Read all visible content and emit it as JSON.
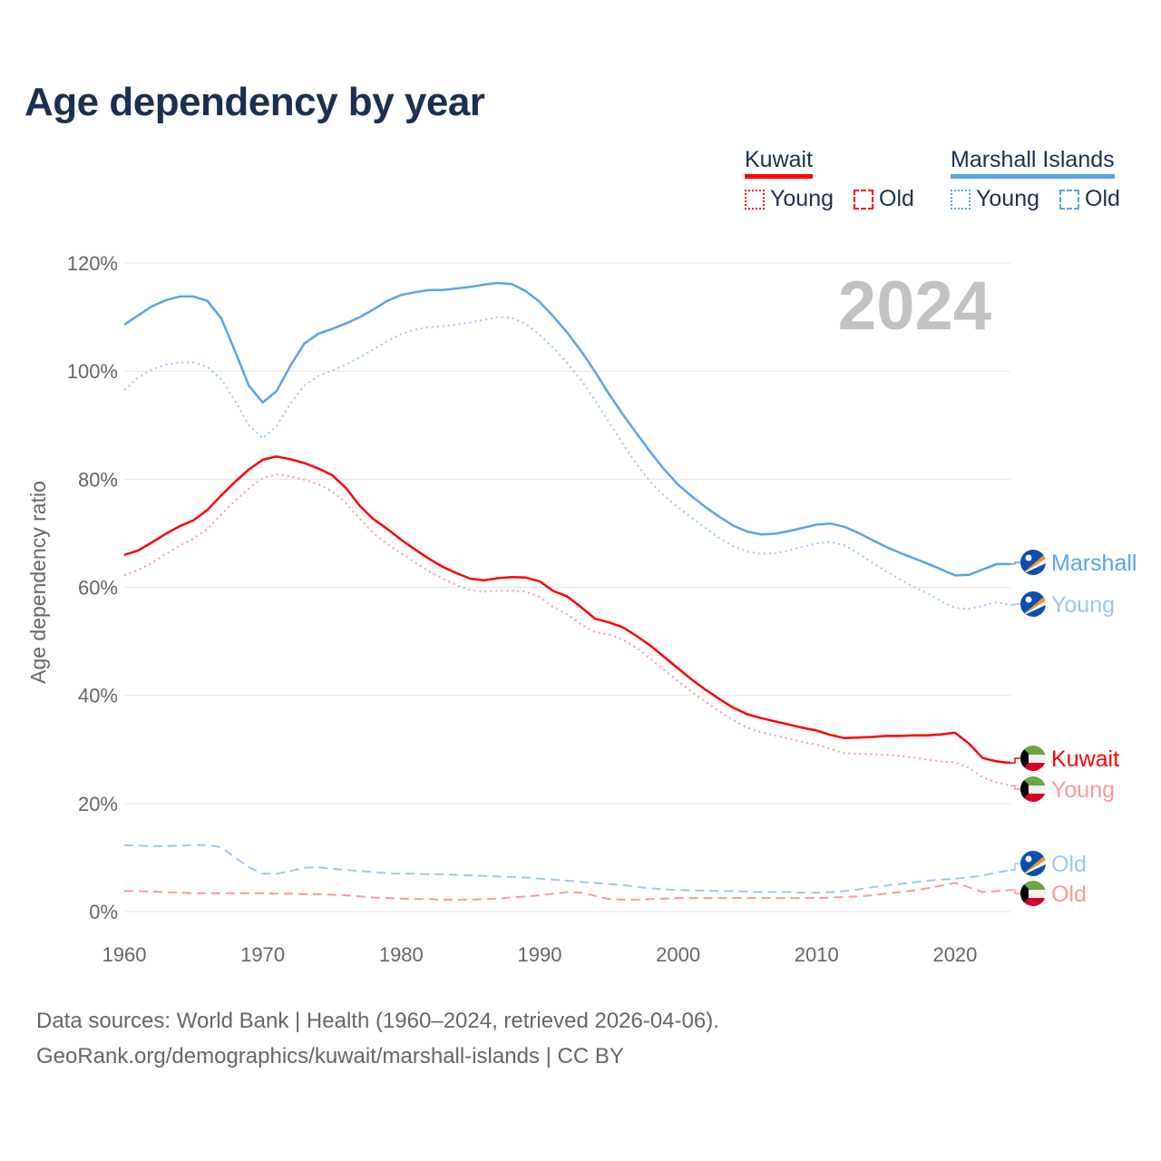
{
  "title": "Age dependency by year",
  "legend": {
    "groups": [
      {
        "name": "Kuwait",
        "color": "#ff0000",
        "items": [
          "Young",
          "Old"
        ]
      },
      {
        "name": "Marshall Islands",
        "color": "#5ba4ea",
        "items": [
          "Young",
          "Old"
        ]
      }
    ]
  },
  "year_watermark": "2024",
  "footer": {
    "line1": "Data sources: World Bank | Health (1960–2024, retrieved 2026-04-06).",
    "line2": "GeoRank.org/demographics/kuwait/marshall-islands | CC BY"
  },
  "end_labels": [
    "Marshall",
    "Young",
    "Kuwait",
    "Young",
    "Old",
    "Old"
  ],
  "chart_data": {
    "type": "line",
    "title": "Age dependency by year",
    "xlabel": "",
    "ylabel": "Age dependency ratio",
    "xlim": [
      1960,
      2024
    ],
    "ylim": [
      0,
      120
    ],
    "x_ticks": [
      "1960",
      "1970",
      "1980",
      "1990",
      "2000",
      "2010",
      "2020"
    ],
    "y_ticks": [
      "0%",
      "20%",
      "40%",
      "60%",
      "80%",
      "100%",
      "120%"
    ],
    "grid": true,
    "start_year": 1960,
    "series": [
      {
        "name": "Marshall Islands",
        "color": "#5ba4ea",
        "style": "solid",
        "values": [
          108.6,
          110.3,
          112,
          113.1,
          113.8,
          113.8,
          113,
          109.8,
          103.7,
          97.3,
          94.2,
          96.3,
          101,
          105.1,
          106.9,
          107.8,
          108.8,
          110,
          111.4,
          113,
          114.1,
          114.6,
          115,
          115,
          115.3,
          115.6,
          116,
          116.3,
          116.1,
          114.8,
          112.8,
          110.1,
          107.1,
          103.7,
          99.9,
          95.8,
          92,
          88.5,
          85,
          81.8,
          79,
          76.8,
          74.8,
          73,
          71.4,
          70.3,
          69.8,
          69.9,
          70.4,
          71,
          71.6,
          71.8,
          71.2,
          70.1,
          68.8,
          67.5,
          66.4,
          65.4,
          64.4,
          63.3,
          62.2,
          62.3,
          63.3,
          64.3,
          64.3
        ]
      },
      {
        "name": "Marshall Islands Young",
        "color": "#9cc8f2",
        "style": "dotted",
        "values": [
          96.5,
          98.8,
          100.3,
          101.2,
          101.6,
          101.6,
          100.8,
          98.5,
          94.5,
          90,
          87.6,
          89.8,
          94,
          97.3,
          99.1,
          100.1,
          101.2,
          102.5,
          104,
          105.6,
          106.9,
          107.7,
          108.1,
          108.3,
          108.6,
          109,
          109.5,
          110,
          109.9,
          108.7,
          106.7,
          104.3,
          101.5,
          98.3,
          94.6,
          90.6,
          86.6,
          82.8,
          79.5,
          76.9,
          74.8,
          72.8,
          70.9,
          69.1,
          67.6,
          66.6,
          66.2,
          66.3,
          66.8,
          67.5,
          68.1,
          68.4,
          67.8,
          66.3,
          64.6,
          63,
          61.5,
          60.1,
          58.9,
          57.4,
          56.2,
          56,
          56.6,
          57.2,
          56.8
        ]
      },
      {
        "name": "Kuwait",
        "color": "#ff0000",
        "style": "solid",
        "values": [
          66,
          66.8,
          68.3,
          69.9,
          71.3,
          72.4,
          74.3,
          77,
          79.5,
          81.8,
          83.6,
          84.2,
          83.7,
          83,
          82,
          80.8,
          78.4,
          75.1,
          72.6,
          70.8,
          68.8,
          67,
          65.3,
          63.8,
          62.6,
          61.6,
          61.3,
          61.7,
          61.9,
          61.8,
          61.1,
          59.3,
          58.3,
          56.3,
          54.2,
          53.5,
          52.6,
          51,
          49.2,
          47.1,
          45,
          42.9,
          41,
          39.3,
          37.7,
          36.5,
          35.8,
          35.2,
          34.6,
          34,
          33.5,
          32.7,
          32.1,
          32.2,
          32.3,
          32.5,
          32.5,
          32.6,
          32.6,
          32.8,
          33.1,
          31.1,
          28.4,
          27.8,
          27.5
        ]
      },
      {
        "name": "Kuwait Young",
        "color": "#ff9999",
        "style": "dotted",
        "values": [
          62.2,
          63.2,
          64.5,
          66.2,
          67.7,
          69,
          70.8,
          73.5,
          76,
          78.3,
          80.2,
          80.9,
          80.5,
          79.9,
          79.1,
          77.8,
          75.6,
          72.7,
          70,
          68,
          66.3,
          64.6,
          63,
          61.6,
          60.4,
          59.5,
          59.2,
          59.4,
          59.4,
          59.2,
          58.2,
          56.3,
          55,
          53.1,
          51.7,
          51.3,
          50.3,
          48.8,
          46.8,
          44.7,
          42.6,
          40.6,
          38.8,
          37,
          35.4,
          34,
          33.2,
          32.6,
          32,
          31.4,
          30.9,
          30.1,
          29.3,
          29.2,
          29.1,
          29,
          28.8,
          28.5,
          28.1,
          27.8,
          27.6,
          26.6,
          24.8,
          23.9,
          23.3
        ]
      },
      {
        "name": "Marshall Islands Old",
        "color": "#9cc8f2",
        "style": "dashed",
        "values": [
          12.3,
          12.2,
          12.1,
          12.1,
          12.2,
          12.3,
          12.3,
          11.9,
          10,
          8.2,
          7,
          7,
          7.5,
          8.1,
          8.2,
          7.9,
          7.7,
          7.5,
          7.3,
          7.1,
          7,
          7,
          6.9,
          6.9,
          6.8,
          6.7,
          6.6,
          6.5,
          6.4,
          6.3,
          6.1,
          5.9,
          5.7,
          5.5,
          5.3,
          5.1,
          4.9,
          4.6,
          4.3,
          4.1,
          4,
          3.9,
          3.9,
          3.8,
          3.8,
          3.7,
          3.6,
          3.6,
          3.6,
          3.5,
          3.5,
          3.6,
          3.8,
          4.1,
          4.5,
          4.8,
          5.1,
          5.4,
          5.7,
          5.9,
          6.1,
          6.3,
          6.7,
          7.2,
          7.7
        ]
      },
      {
        "name": "Kuwait Old",
        "color": "#ff9999",
        "style": "dashed",
        "values": [
          3.8,
          3.8,
          3.7,
          3.6,
          3.5,
          3.4,
          3.4,
          3.4,
          3.4,
          3.4,
          3.4,
          3.3,
          3.3,
          3.2,
          3.2,
          3.1,
          3,
          2.8,
          2.6,
          2.5,
          2.4,
          2.3,
          2.3,
          2.2,
          2.2,
          2.2,
          2.3,
          2.4,
          2.6,
          2.8,
          3,
          3.3,
          3.6,
          3.5,
          2.9,
          2.3,
          2.2,
          2.2,
          2.3,
          2.4,
          2.5,
          2.5,
          2.5,
          2.5,
          2.5,
          2.5,
          2.5,
          2.5,
          2.5,
          2.5,
          2.5,
          2.6,
          2.7,
          2.8,
          3,
          3.3,
          3.6,
          3.9,
          4.3,
          4.8,
          5.3,
          4.5,
          3.6,
          3.8,
          4
        ]
      }
    ]
  }
}
